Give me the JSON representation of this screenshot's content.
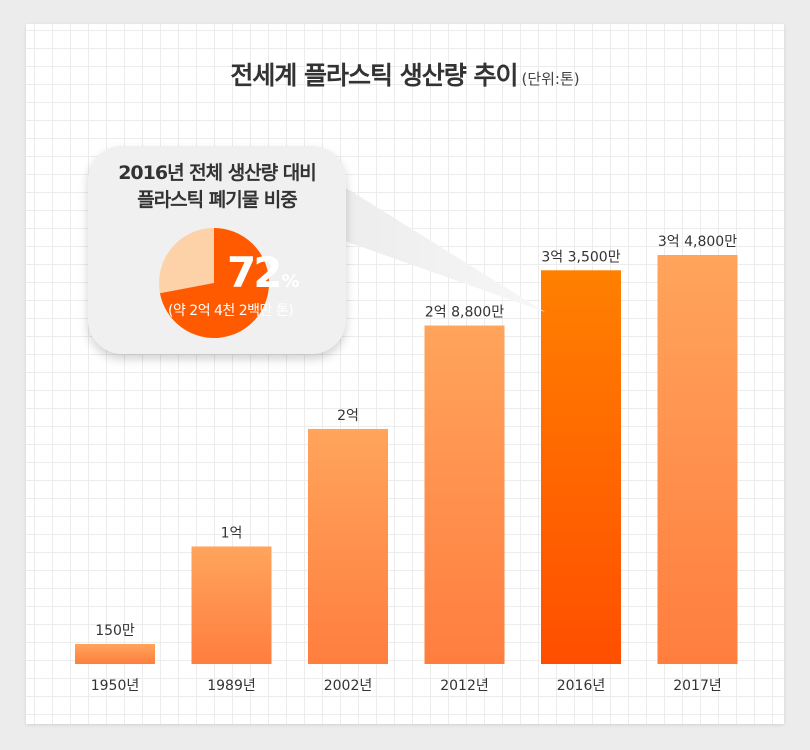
{
  "title": "전세계 플라스틱 생산량 추이",
  "unit": "(단위:톤)",
  "callout": {
    "line1": "2016년 전체 생산량 대비",
    "line2": "플라스틱 폐기물 비중",
    "percent": "72",
    "percent_sign": "%",
    "note": "(약 2억 4천 2백만 톤)",
    "share": 0.72,
    "colors": {
      "share": "#ff5a00",
      "rest": "#fdd2a8"
    }
  },
  "chart_data": {
    "type": "bar",
    "title": "전세계 플라스틱 생산량 추이",
    "unit": "(단위:톤)",
    "categories": [
      "1950년",
      "1989년",
      "2002년",
      "2012년",
      "2016년",
      "2017년"
    ],
    "values": [
      1500000,
      100000000,
      200000000,
      288000000,
      335000000,
      348000000
    ],
    "value_labels": [
      "150만",
      "1억",
      "2억",
      "2억 8,800만",
      "3억 3,500만",
      "3억 4,800만"
    ],
    "highlight": "2016년",
    "colors": {
      "bar_top": "#ffa45c",
      "bar_bottom": "#ff7e3e",
      "highlight_top": "#ff8000",
      "highlight_bottom": "#ff4e00"
    },
    "grid": true
  }
}
